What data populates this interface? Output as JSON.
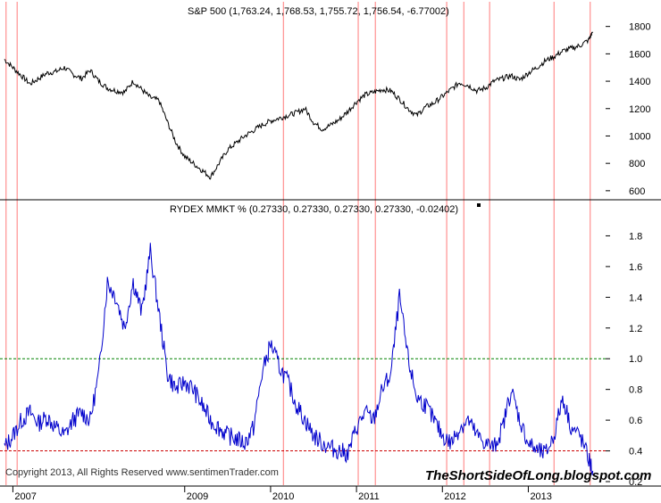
{
  "chart_data": [
    {
      "type": "line",
      "title": "S&P 500 (1,763.24, 1,768.53, 1,755.72, 1,756.54, -6.77002)",
      "ylim": [
        560,
        1850
      ],
      "yticks": [
        "1800",
        "1600",
        "1400",
        "1200",
        "1000",
        "800",
        "600"
      ],
      "ytick_values": [
        1800,
        1600,
        1400,
        1200,
        1000,
        800,
        600
      ],
      "series": [
        {
          "color": "#000000",
          "x": [
            2006.9,
            2007.0,
            2007.1,
            2007.2,
            2007.3,
            2007.4,
            2007.5,
            2007.6,
            2007.7,
            2007.8,
            2007.9,
            2008.0,
            2008.1,
            2008.2,
            2008.3,
            2008.4,
            2008.5,
            2008.6,
            2008.7,
            2008.8,
            2008.9,
            2009.0,
            2009.1,
            2009.2,
            2009.3,
            2009.4,
            2009.5,
            2009.6,
            2009.7,
            2009.8,
            2009.9,
            2010.0,
            2010.1,
            2010.2,
            2010.3,
            2010.4,
            2010.5,
            2010.6,
            2010.7,
            2010.8,
            2010.9,
            2011.0,
            2011.1,
            2011.2,
            2011.3,
            2011.4,
            2011.5,
            2011.6,
            2011.7,
            2011.8,
            2011.9,
            2012.0,
            2012.1,
            2012.2,
            2012.3,
            2012.4,
            2012.5,
            2012.6,
            2012.7,
            2012.8,
            2012.9,
            2013.0,
            2013.1,
            2013.2,
            2013.3,
            2013.4,
            2013.5,
            2013.6,
            2013.7,
            2013.75
          ],
          "values": [
            1560,
            1500,
            1440,
            1380,
            1420,
            1460,
            1470,
            1500,
            1450,
            1420,
            1480,
            1400,
            1350,
            1330,
            1320,
            1400,
            1340,
            1280,
            1260,
            1100,
            950,
            850,
            800,
            750,
            700,
            800,
            900,
            950,
            1000,
            1040,
            1080,
            1110,
            1130,
            1150,
            1170,
            1200,
            1100,
            1050,
            1080,
            1120,
            1180,
            1250,
            1300,
            1320,
            1340,
            1330,
            1270,
            1200,
            1150,
            1210,
            1240,
            1290,
            1340,
            1390,
            1370,
            1330,
            1350,
            1400,
            1420,
            1440,
            1410,
            1460,
            1500,
            1550,
            1580,
            1620,
            1640,
            1660,
            1700,
            1760
          ]
        }
      ]
    },
    {
      "type": "line",
      "title": "RYDEX MMKT % (0.27330, 0.27330, 0.27330, 0.27330, -0.02402)",
      "ylim": [
        0.2,
        2.0
      ],
      "yticks": [
        "1.8",
        "1.6",
        "1.4",
        "1.2",
        "1.0",
        "0.8",
        "0.6",
        "0.4",
        "0.2"
      ],
      "ytick_values": [
        1.8,
        1.6,
        1.4,
        1.2,
        1.0,
        0.8,
        0.6,
        0.4,
        0.2
      ],
      "reference_lines": [
        {
          "value": 1.0,
          "color": "#008000"
        },
        {
          "value": 0.4,
          "color": "#cc0000"
        }
      ],
      "series": [
        {
          "color": "#0000cc",
          "x": [
            2006.9,
            2007.0,
            2007.1,
            2007.2,
            2007.3,
            2007.4,
            2007.5,
            2007.6,
            2007.7,
            2007.8,
            2007.9,
            2008.0,
            2008.1,
            2008.2,
            2008.3,
            2008.4,
            2008.5,
            2008.6,
            2008.7,
            2008.8,
            2008.9,
            2009.0,
            2009.1,
            2009.2,
            2009.3,
            2009.4,
            2009.5,
            2009.6,
            2009.7,
            2009.8,
            2009.9,
            2010.0,
            2010.1,
            2010.2,
            2010.3,
            2010.4,
            2010.5,
            2010.6,
            2010.7,
            2010.8,
            2010.9,
            2011.0,
            2011.1,
            2011.2,
            2011.3,
            2011.4,
            2011.5,
            2011.6,
            2011.7,
            2011.8,
            2011.9,
            2012.0,
            2012.1,
            2012.2,
            2012.3,
            2012.4,
            2012.5,
            2012.6,
            2012.7,
            2012.8,
            2012.9,
            2013.0,
            2013.1,
            2013.2,
            2013.3,
            2013.4,
            2013.5,
            2013.6,
            2013.7,
            2013.75
          ],
          "values": [
            0.42,
            0.5,
            0.6,
            0.65,
            0.58,
            0.62,
            0.55,
            0.5,
            0.6,
            0.65,
            0.6,
            0.9,
            1.5,
            1.4,
            1.2,
            1.5,
            1.3,
            1.7,
            1.3,
            0.9,
            0.8,
            0.85,
            0.8,
            0.7,
            0.6,
            0.55,
            0.5,
            0.48,
            0.45,
            0.55,
            0.9,
            1.1,
            0.95,
            0.85,
            0.7,
            0.6,
            0.5,
            0.45,
            0.42,
            0.4,
            0.38,
            0.55,
            0.65,
            0.6,
            0.8,
            0.9,
            1.4,
            1.0,
            0.75,
            0.7,
            0.6,
            0.5,
            0.45,
            0.55,
            0.6,
            0.5,
            0.45,
            0.42,
            0.55,
            0.8,
            0.6,
            0.45,
            0.4,
            0.38,
            0.5,
            0.75,
            0.55,
            0.5,
            0.35,
            0.27
          ]
        }
      ]
    }
  ],
  "x_axis": {
    "years": [
      "2007",
      "2009",
      "2010",
      "2011",
      "2012",
      "2013"
    ],
    "year_values": [
      2007.0,
      2009.0,
      2010.0,
      2011.0,
      2012.0,
      2013.0
    ],
    "xlim": [
      2006.85,
      2013.9
    ]
  },
  "vertical_markers": [
    2006.92,
    2007.05,
    2010.15,
    2011.02,
    2011.22,
    2012.05,
    2012.25,
    2012.55,
    2013.3,
    2013.72
  ],
  "copyright": "Copyright 2013, All Rights Reserved  www.sentimenTrader.com",
  "watermark": "TheShortSideOfLong.blogspot.com",
  "colors": {
    "sp500": "#000000",
    "rydex": "#0000cc",
    "marker": "#ff9999",
    "upper_ref": "#008000",
    "lower_ref": "#cc0000"
  }
}
